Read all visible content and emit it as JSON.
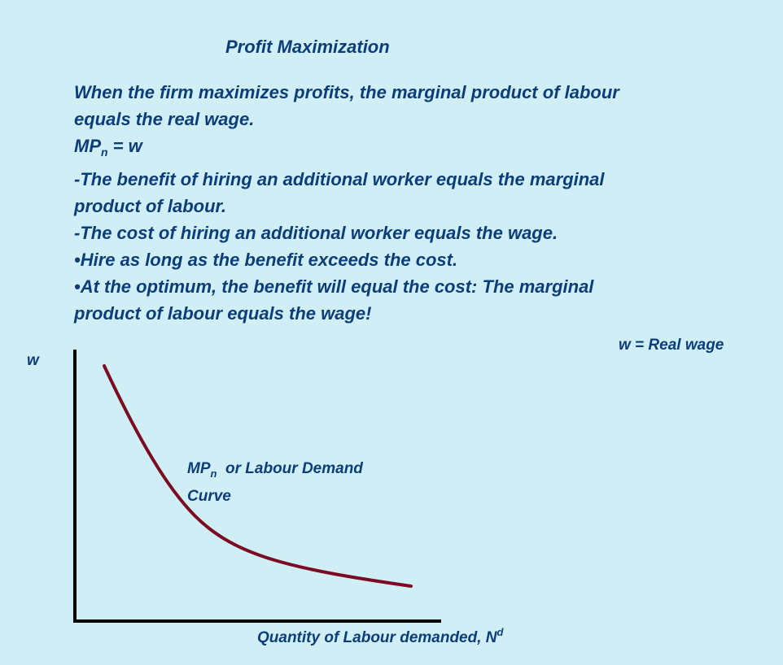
{
  "title": "Profit Maximization",
  "paragraphs": {
    "line1": "When the firm maximizes profits, the marginal product of labour",
    "line2": "equals the real wage.",
    "eq_mp": "MP",
    "eq_sub": "n",
    "eq_rest": " = w",
    "line4": "-The benefit of hiring an additional worker equals the marginal",
    "line5": "product of labour.",
    "line6": "-The cost of hiring an additional worker equals the wage.",
    "line7": "•Hire as long as the benefit exceeds the cost.",
    "line8": "•At the optimum, the benefit will equal the cost: The marginal",
    "line9": "product of labour equals the wage!"
  },
  "diagram": {
    "y_axis_label": "w",
    "legend_text": "w = Real wage",
    "curve_label_mp": "MP",
    "curve_label_sub": "n",
    "curve_label_rest": "  or Labour Demand",
    "curve_label_line2": "Curve",
    "x_axis_label": "Quantity of Labour demanded, N",
    "x_axis_sup": "d",
    "axis_color": "#000000",
    "curve_color": "#7a0b22"
  }
}
